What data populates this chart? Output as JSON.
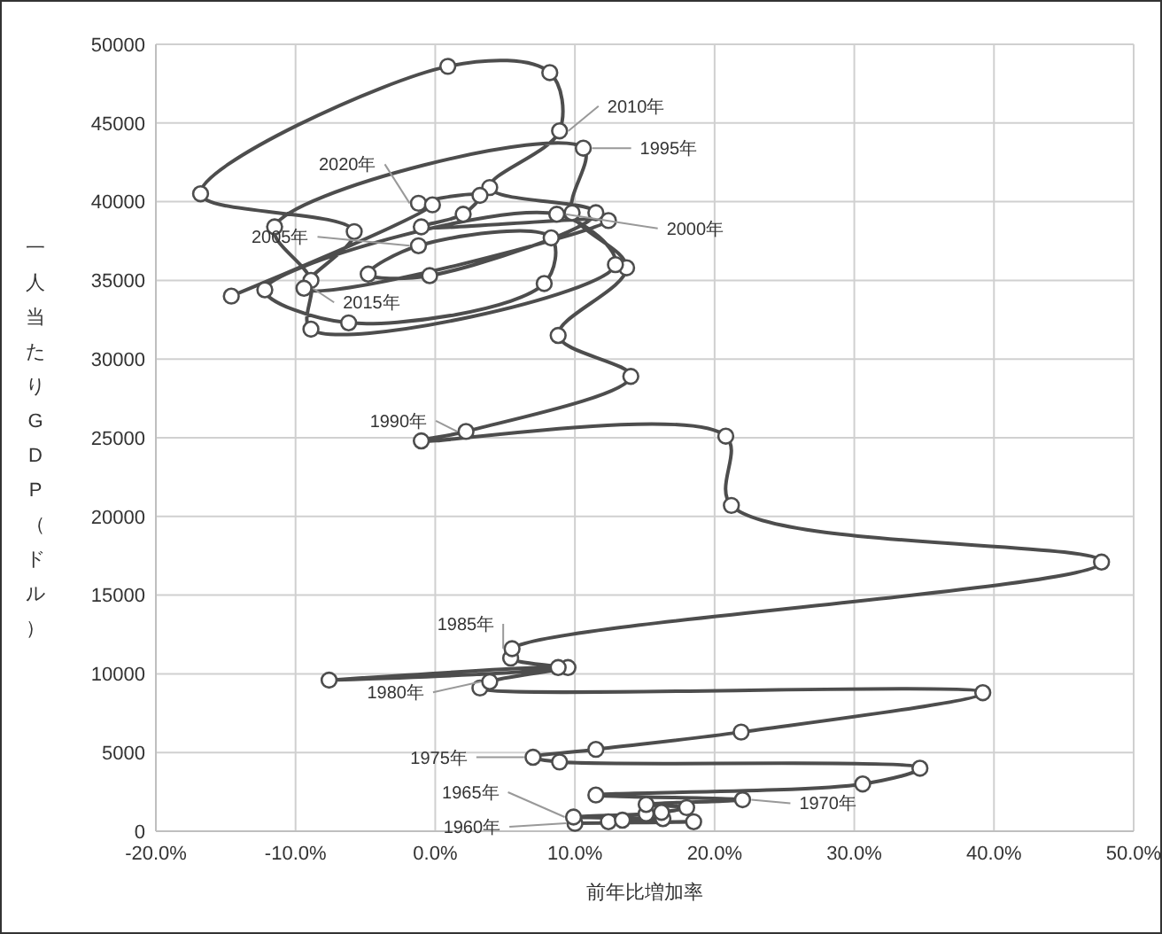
{
  "chart_data": {
    "type": "line",
    "xlabel": "前年比増加率",
    "ylabel": "一人当たりGDP（ドル）",
    "x": [
      10.0,
      18.5,
      12.4,
      13.4,
      16.3,
      9.9,
      15.1,
      16.2,
      18.0,
      15.1,
      22.0,
      11.5,
      30.6,
      34.7,
      8.9,
      7.0,
      11.5,
      21.9,
      39.2,
      3.2,
      3.9,
      9.5,
      -7.6,
      8.8,
      5.4,
      5.5,
      47.7,
      21.2,
      20.8,
      -1.0,
      2.2,
      14.0,
      8.8,
      13.7,
      9.8,
      10.6,
      -11.5,
      -8.9,
      -8.9,
      12.9,
      8.7,
      -12.2,
      -6.2,
      7.8,
      8.3,
      -1.2,
      -4.8,
      -0.4,
      11.5,
      3.9,
      8.9,
      8.2,
      0.9,
      -16.8,
      -5.8,
      -9.4,
      12.4,
      -1.0,
      2.0,
      3.2,
      -1.2,
      -0.2,
      -14.6
    ],
    "series": [
      {
        "color": "#4d4d4d",
        "values": [
          500,
          600,
          600,
          700,
          800,
          900,
          1100,
          1200,
          1500,
          1700,
          2000,
          2300,
          3000,
          4000,
          4400,
          4700,
          5200,
          6300,
          8800,
          9100,
          9500,
          10400,
          9600,
          10400,
          11000,
          11600,
          17100,
          20700,
          25100,
          24800,
          25400,
          28900,
          31500,
          35800,
          39300,
          43400,
          38400,
          35000,
          31900,
          36000,
          39200,
          34400,
          32300,
          34800,
          37700,
          37200,
          35400,
          35300,
          39300,
          40900,
          44500,
          48200,
          48600,
          40500,
          38100,
          34500,
          38800,
          38400,
          39200,
          40400,
          39900,
          39800,
          34000
        ]
      }
    ],
    "marker": "circle",
    "line_style": "solid",
    "grid": true,
    "xlim": [
      -20,
      50
    ],
    "xticks": [
      {
        "value": -20,
        "label": "-20.0%"
      },
      {
        "value": -10,
        "label": "-10.0%"
      },
      {
        "value": 0,
        "label": "0.0%"
      },
      {
        "value": 10,
        "label": "10.0%"
      },
      {
        "value": 20,
        "label": "20.0%"
      },
      {
        "value": 30,
        "label": "30.0%"
      },
      {
        "value": 40,
        "label": "40.0%"
      },
      {
        "value": 50,
        "label": "50.0%"
      }
    ],
    "ylim": [
      0,
      50000
    ],
    "yticks": [
      0,
      5000,
      10000,
      15000,
      20000,
      25000,
      30000,
      35000,
      40000,
      45000,
      50000
    ],
    "annotations": [
      {
        "text": "1960年",
        "x": 10.0,
        "y": 500
      },
      {
        "text": "1965年",
        "x": 9.9,
        "y": 900
      },
      {
        "text": "1970年",
        "x": 22.0,
        "y": 2000
      },
      {
        "text": "1975年",
        "x": 7.0,
        "y": 4700
      },
      {
        "text": "1980年",
        "x": 3.9,
        "y": 9500
      },
      {
        "text": "1985年",
        "x": 5.5,
        "y": 11600
      },
      {
        "text": "1990年",
        "x": 2.2,
        "y": 25400
      },
      {
        "text": "1995年",
        "x": 10.6,
        "y": 43400
      },
      {
        "text": "2000年",
        "x": 8.7,
        "y": 39200
      },
      {
        "text": "2005年",
        "x": -1.2,
        "y": 37200
      },
      {
        "text": "2010年",
        "x": 8.9,
        "y": 44500
      },
      {
        "text": "2015年",
        "x": -9.4,
        "y": 34500
      },
      {
        "text": "2020年",
        "x": -1.2,
        "y": 39900
      }
    ]
  }
}
